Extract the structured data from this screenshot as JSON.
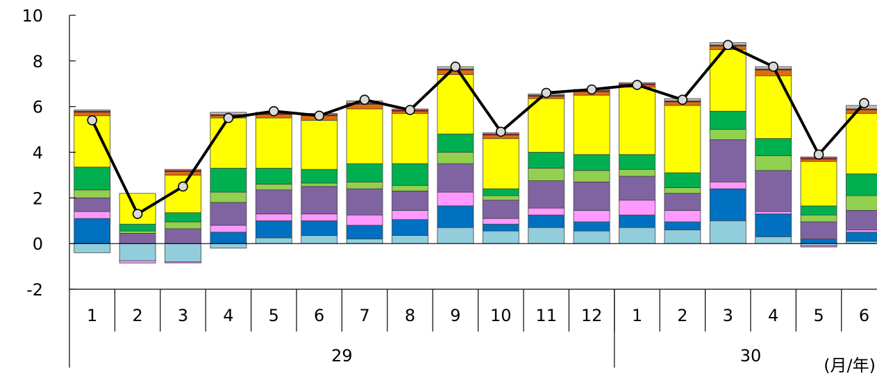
{
  "chart_data": {
    "type": "bar",
    "stacked": true,
    "overlay": "line",
    "ylim": [
      -2,
      10
    ],
    "yticks": [
      "10",
      "8",
      "6",
      "4",
      "2",
      "0",
      "-2"
    ],
    "ytick_values": [
      10,
      8,
      6,
      4,
      2,
      0,
      -2
    ],
    "grid": false,
    "legend": "none",
    "categories": [
      "1",
      "2",
      "3",
      "4",
      "5",
      "6",
      "7",
      "8",
      "9",
      "10",
      "11",
      "12",
      "1",
      "2",
      "3",
      "4",
      "5",
      "6"
    ],
    "groups": [
      {
        "label": "29",
        "span": 12
      },
      {
        "label": "30",
        "span": 6
      }
    ],
    "unit_label": "(月/年)",
    "series": [
      {
        "color": "#92cddc",
        "values": [
          -0.4,
          -0.75,
          -0.8,
          -0.2,
          0.25,
          0.35,
          0.2,
          0.35,
          0.7,
          0.55,
          0.7,
          0.55,
          0.7,
          0.6,
          1.0,
          0.3,
          -0.1,
          0.1
        ]
      },
      {
        "color": "#0070c0",
        "values": [
          1.1,
          0.0,
          0.0,
          0.5,
          0.75,
          0.65,
          0.6,
          0.7,
          0.95,
          0.3,
          0.55,
          0.4,
          0.55,
          0.35,
          1.4,
          1.0,
          0.2,
          0.4
        ]
      },
      {
        "color": "#ff99ff",
        "values": [
          0.3,
          -0.1,
          -0.05,
          0.3,
          0.3,
          0.3,
          0.45,
          0.4,
          0.6,
          0.25,
          0.3,
          0.5,
          0.65,
          0.5,
          0.3,
          0.1,
          -0.05,
          0.1
        ]
      },
      {
        "color": "#8064a2",
        "values": [
          0.6,
          0.45,
          0.65,
          1.0,
          1.05,
          1.2,
          1.15,
          0.85,
          1.25,
          0.8,
          1.2,
          1.25,
          1.05,
          0.75,
          1.85,
          1.8,
          0.75,
          0.85
        ]
      },
      {
        "color": "#92d050",
        "values": [
          0.35,
          0.1,
          0.3,
          0.45,
          0.25,
          0.15,
          0.3,
          0.25,
          0.5,
          0.2,
          0.55,
          0.5,
          0.3,
          0.25,
          0.45,
          0.65,
          0.3,
          0.65
        ]
      },
      {
        "color": "#00b050",
        "values": [
          1.0,
          0.3,
          0.4,
          1.05,
          0.7,
          0.6,
          0.8,
          0.95,
          0.8,
          0.3,
          0.7,
          0.7,
          0.65,
          0.65,
          0.8,
          0.75,
          0.4,
          0.95
        ]
      },
      {
        "color": "#ffff00",
        "values": [
          2.25,
          1.35,
          1.65,
          2.2,
          2.2,
          2.15,
          2.4,
          2.2,
          2.6,
          2.2,
          2.35,
          2.6,
          2.95,
          2.95,
          2.7,
          2.75,
          1.95,
          2.65
        ]
      },
      {
        "color": "#e36c09",
        "values": [
          0.15,
          0.0,
          0.15,
          0.1,
          0.15,
          0.2,
          0.2,
          0.1,
          0.2,
          0.15,
          0.1,
          0.15,
          0.1,
          0.15,
          0.15,
          0.25,
          0.1,
          0.15
        ]
      },
      {
        "color": "#c00000",
        "values": [
          0.05,
          0.0,
          0.05,
          0.05,
          0.05,
          0.05,
          0.05,
          0.05,
          0.05,
          0.05,
          0.05,
          0.05,
          0.05,
          0.05,
          0.05,
          0.05,
          0.05,
          0.05
        ]
      },
      {
        "color": "#bfbfbf",
        "values": [
          0.05,
          0.0,
          0.05,
          0.1,
          0.05,
          0.05,
          0.1,
          0.05,
          0.1,
          0.05,
          0.05,
          0.05,
          0.05,
          0.1,
          0.1,
          0.1,
          0.05,
          0.15
        ]
      }
    ],
    "line": {
      "color": "#000000",
      "marker_fill": "#d9d9d9",
      "values": [
        5.4,
        1.3,
        2.5,
        5.5,
        5.8,
        5.6,
        6.3,
        5.85,
        7.75,
        4.9,
        6.6,
        6.75,
        6.95,
        6.3,
        8.7,
        7.75,
        3.9,
        6.15
      ]
    }
  }
}
